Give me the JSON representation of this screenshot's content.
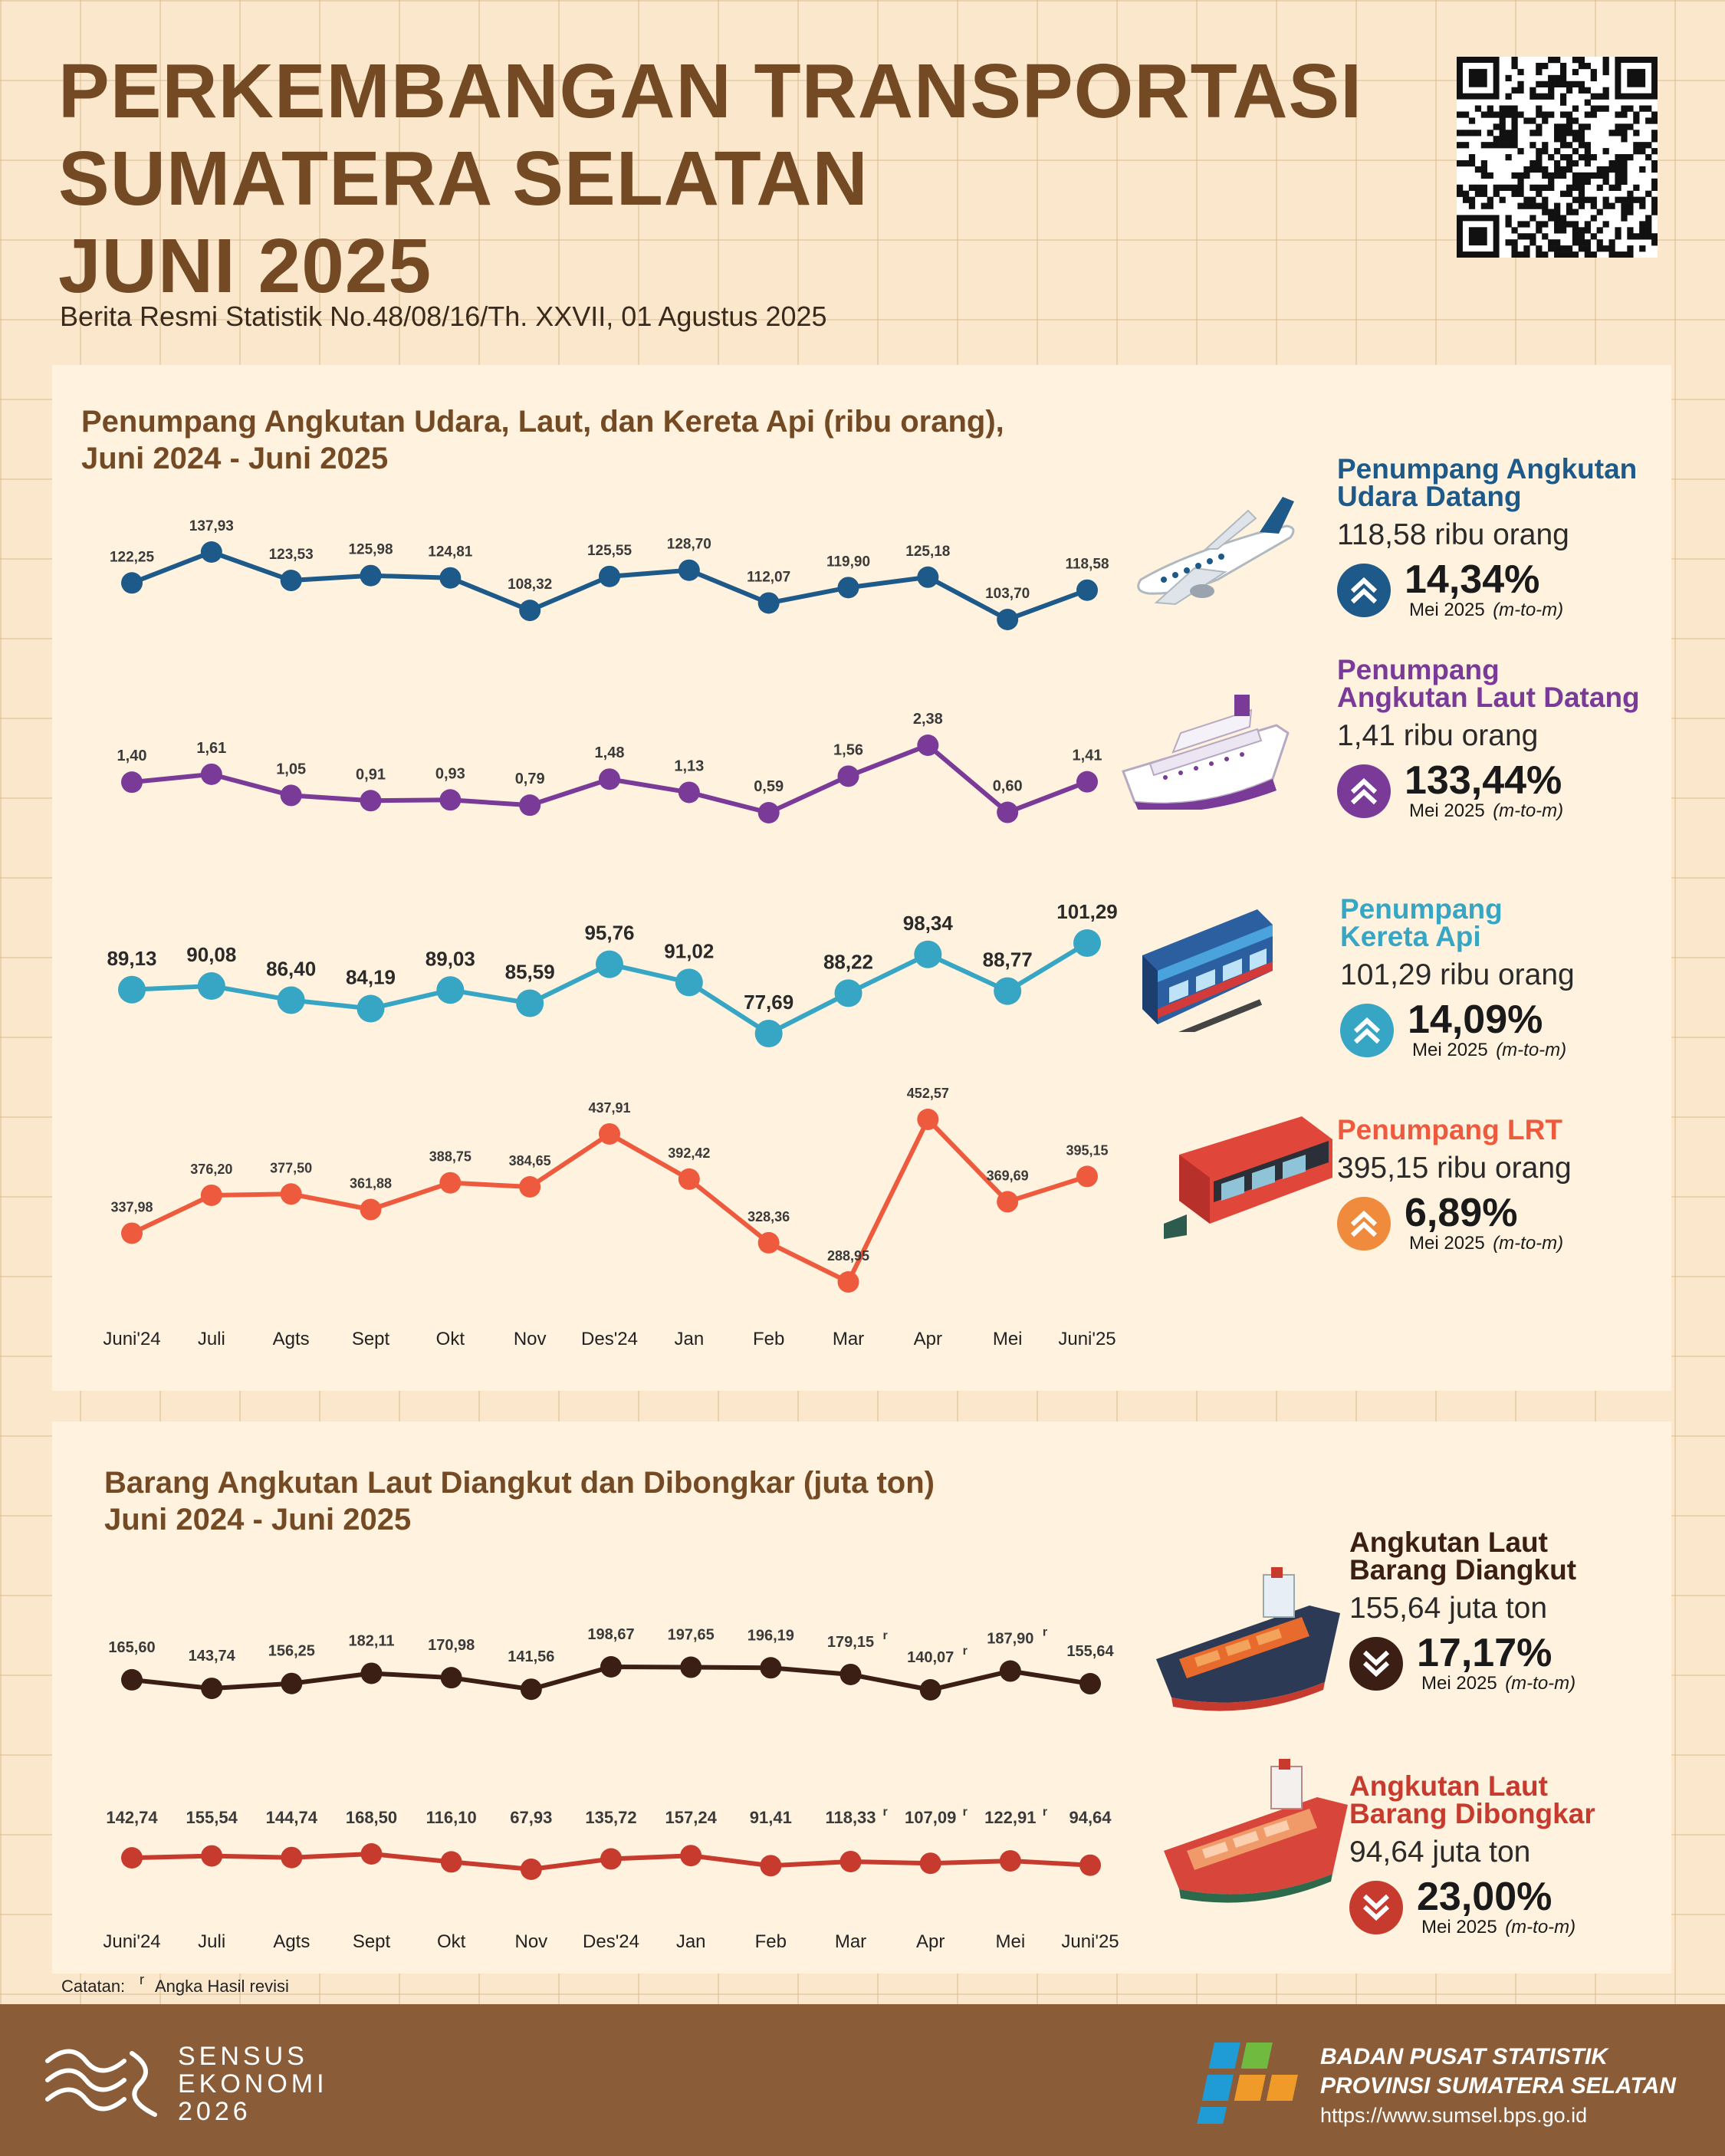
{
  "header": {
    "title_lines": [
      "PERKEMBANGAN TRANSPORTASI",
      "SUMATERA SELATAN",
      "JUNI 2025"
    ],
    "subtitle": "Berita Resmi Statistik No.48/08/16/Th. XXVII, 01 Agustus 2025"
  },
  "section1": {
    "title_line1": "Penumpang Angkutan Udara, Laut, dan Kereta Api (ribu orang),",
    "title_line2": "Juni 2024 - Juni 2025"
  },
  "section2": {
    "title_line1": "Barang Angkutan Laut Diangkut dan Dibongkar (juta ton)",
    "title_line2": "Juni 2024 - Juni 2025"
  },
  "colors": {
    "udara": "#1d5a8a",
    "laut": "#7a3a98",
    "kereta": "#37a6c4",
    "lrt": "#ee5a3e",
    "barang_diangkut": "#3b1e14",
    "barang_dibongkar": "#c73a2e",
    "lrt_arrow": "#f08a3c",
    "title_brown": "#734a24",
    "footer_brown": "#8a5c38"
  },
  "chart_data": [
    {
      "type": "line",
      "categories": [
        "Juni'24",
        "Juli",
        "Agts",
        "Sept",
        "Okt",
        "Nov",
        "Des'24",
        "Jan",
        "Feb",
        "Mar",
        "Apr",
        "Mei",
        "Juni'25"
      ],
      "series": [
        {
          "name": "Penumpang Angkutan Udara Datang",
          "labels": [
            "122,25",
            "137,93",
            "123,53",
            "125,98",
            "124,81",
            "108,32",
            "125,55",
            "128,70",
            "112,07",
            "119,90",
            "125,18",
            "103,70",
            "118,58"
          ],
          "values": [
            122.25,
            137.93,
            123.53,
            125.98,
            124.81,
            108.32,
            125.55,
            128.7,
            112.07,
            119.9,
            125.18,
            103.7,
            118.58
          ]
        },
        {
          "name": "Penumpang Angkutan Laut Datang",
          "labels": [
            "1,40",
            "1,61",
            "1,05",
            "0,91",
            "0,93",
            "0,79",
            "1,48",
            "1,13",
            "0,59",
            "1,56",
            "2,38",
            "0,60",
            "1,41"
          ],
          "values": [
            1.4,
            1.61,
            1.05,
            0.91,
            0.93,
            0.79,
            1.48,
            1.13,
            0.59,
            1.56,
            2.38,
            0.6,
            1.41
          ]
        },
        {
          "name": "Penumpang Kereta Api",
          "labels": [
            "89,13",
            "90,08",
            "86,40",
            "84,19",
            "89,03",
            "85,59",
            "95,76",
            "91,02",
            "77,69",
            "88,22",
            "98,34",
            "88,77",
            "101,29"
          ],
          "values": [
            89.13,
            90.08,
            86.4,
            84.19,
            89.03,
            85.59,
            95.76,
            91.02,
            77.69,
            88.22,
            98.34,
            88.77,
            101.29
          ]
        },
        {
          "name": "Penumpang LRT",
          "labels": [
            "337,98",
            "376,20",
            "377,50",
            "361,88",
            "388,75",
            "384,65",
            "437,91",
            "392,42",
            "328,36",
            "288,95",
            "452,57",
            "369,69",
            "395,15"
          ],
          "values": [
            337.98,
            376.2,
            377.5,
            361.88,
            388.75,
            384.65,
            437.91,
            392.42,
            328.36,
            288.95,
            452.57,
            369.69,
            395.15
          ]
        }
      ]
    },
    {
      "type": "line",
      "categories": [
        "Juni'24",
        "Juli",
        "Agts",
        "Sept",
        "Okt",
        "Nov",
        "Des'24",
        "Jan",
        "Feb",
        "Mar",
        "Apr",
        "Mei",
        "Juni'25"
      ],
      "series": [
        {
          "name": "Angkutan Laut Barang Diangkut",
          "labels": [
            "165,60",
            "143,74",
            "156,25",
            "182,11",
            "170,98",
            "141,56",
            "198,67",
            "197,65",
            "196,19",
            "179,15",
            "140,07",
            "187,90",
            "155,64"
          ],
          "revised": [
            false,
            false,
            false,
            false,
            false,
            false,
            false,
            false,
            false,
            true,
            true,
            true,
            false
          ],
          "values": [
            165.6,
            143.74,
            156.25,
            182.11,
            170.98,
            141.56,
            198.67,
            197.65,
            196.19,
            179.15,
            140.07,
            187.9,
            155.64
          ]
        },
        {
          "name": "Angkutan Laut Barang Dibongkar",
          "labels": [
            "142,74",
            "155,54",
            "144,74",
            "168,50",
            "116,10",
            "67,93",
            "135,72",
            "157,24",
            "91,41",
            "118,33",
            "107,09",
            "122,91",
            "94,64"
          ],
          "revised": [
            false,
            false,
            false,
            false,
            false,
            false,
            false,
            false,
            false,
            true,
            true,
            true,
            false
          ],
          "values": [
            142.74,
            155.54,
            144.74,
            168.5,
            116.1,
            67.93,
            135.72,
            157.24,
            91.41,
            118.33,
            107.09,
            122.91,
            94.64
          ]
        }
      ]
    }
  ],
  "sidebar": {
    "udara": {
      "label_line1": "Penumpang Angkutan",
      "label_line2": "Udara Datang",
      "value": "118,58 ribu orang",
      "change": "14,34%",
      "direction": "up",
      "period": "Mei 2025",
      "period_note": "(m-to-m)"
    },
    "laut": {
      "label_line1": "Penumpang",
      "label_line2": "Angkutan Laut Datang",
      "value": "1,41 ribu orang",
      "change": "133,44%",
      "direction": "up",
      "period": "Mei 2025",
      "period_note": "(m-to-m)"
    },
    "kereta": {
      "label_line1": "Penumpang",
      "label_line2": "Kereta Api",
      "value": "101,29 ribu orang",
      "change": "14,09%",
      "direction": "up",
      "period": "Mei 2025",
      "period_note": "(m-to-m)"
    },
    "lrt": {
      "label_line1": "Penumpang LRT",
      "label_line2": "",
      "value": "395,15 ribu orang",
      "change": "6,89%",
      "direction": "up",
      "period": "Mei 2025",
      "period_note": "(m-to-m)"
    },
    "diangkut": {
      "label_line1": "Angkutan Laut",
      "label_line2": "Barang Diangkut",
      "value": "155,64 juta ton",
      "change": "17,17%",
      "direction": "down",
      "period": "Mei 2025",
      "period_note": "(m-to-m)"
    },
    "dibongkar": {
      "label_line1": "Angkutan Laut",
      "label_line2": "Barang Dibongkar",
      "value": "94,64 juta ton",
      "change": "23,00%",
      "direction": "down",
      "period": "Mei 2025",
      "period_note": "(m-to-m)"
    }
  },
  "note": {
    "label": "Catatan:",
    "mark": "r",
    "text": "Angka Hasil revisi"
  },
  "footer": {
    "sensus_lines": [
      "SENSUS",
      "EKONOMI",
      "2026"
    ],
    "bps_lines": [
      "BADAN PUSAT STATISTIK",
      "PROVINSI SUMATERA SELATAN"
    ],
    "url": "https://www.sumsel.bps.go.id"
  }
}
